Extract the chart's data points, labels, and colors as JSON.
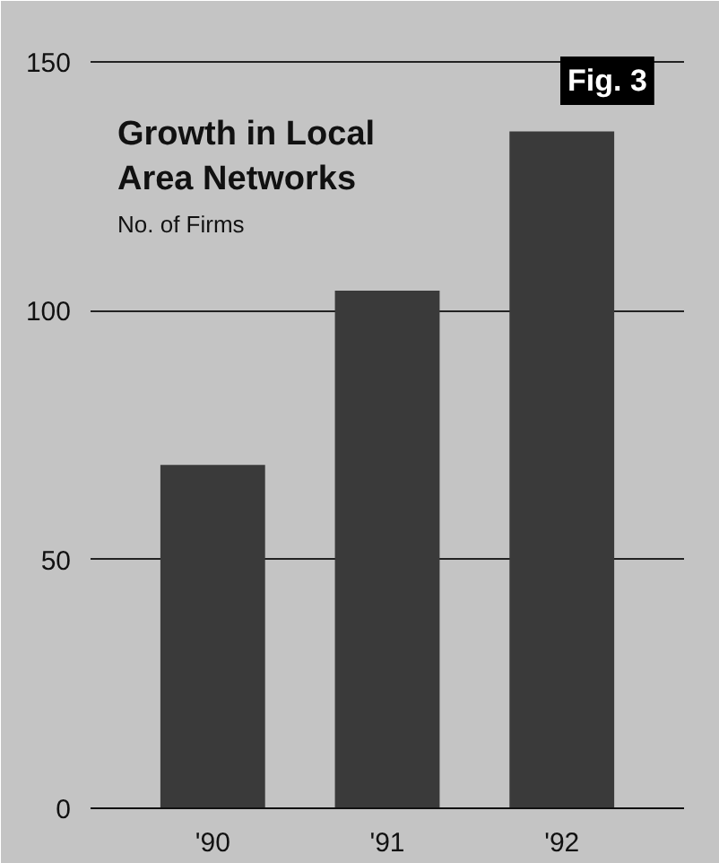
{
  "chart_data": {
    "type": "bar",
    "title": "Growth in Local Area Networks",
    "subtitle": "No. of Firms",
    "annotations": [
      "Fig. 3"
    ],
    "categories": [
      "'90",
      "'91",
      "'92"
    ],
    "values": [
      69,
      104,
      136
    ],
    "color": "#3a3a3a",
    "ylim": [
      0,
      155
    ],
    "yticks": [
      0,
      50,
      100,
      150
    ],
    "grid": "y"
  }
}
